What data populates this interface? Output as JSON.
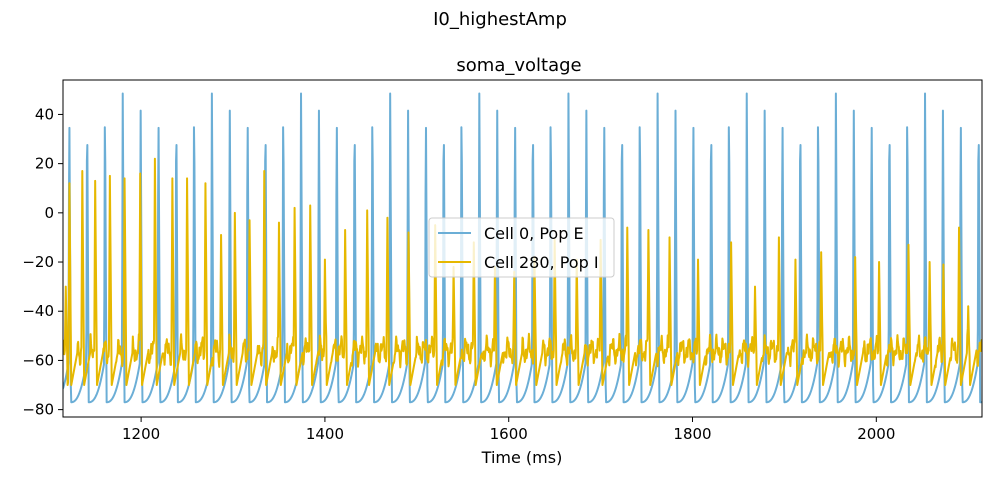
{
  "figure": {
    "suptitle": "I0_highestAmp"
  },
  "chart_data": {
    "type": "line",
    "title": "soma_voltage",
    "xlabel": "Time (ms)",
    "ylabel": "",
    "xlim": [
      1115,
      2115
    ],
    "ylim": [
      -83,
      54
    ],
    "xticks": [
      1200,
      1400,
      1600,
      1800,
      2000
    ],
    "yticks": [
      -80,
      -60,
      -40,
      -20,
      0,
      20,
      40
    ],
    "grid": false,
    "legend_position": "center",
    "series": [
      {
        "name": "Cell 0, Pop E",
        "color": "#6baed6",
        "pattern": "regular-spiking",
        "period_ms": 19.4,
        "first_spike_ms": 1121,
        "peak_mV": 48.5,
        "trough_mV": -77,
        "pre_spike_mV": -61
      },
      {
        "name": "Cell 280, Pop I",
        "color": "#e6b800",
        "pattern": "irregular-spiking",
        "baseline_mV": -56,
        "spikes": [
          {
            "t": 1118,
            "v": -30
          },
          {
            "t": 1122,
            "v": 12
          },
          {
            "t": 1136,
            "v": 17
          },
          {
            "t": 1150,
            "v": 13
          },
          {
            "t": 1166,
            "v": 15
          },
          {
            "t": 1182,
            "v": 14
          },
          {
            "t": 1199,
            "v": 16
          },
          {
            "t": 1215,
            "v": 22
          },
          {
            "t": 1234,
            "v": 14
          },
          {
            "t": 1250,
            "v": 14
          },
          {
            "t": 1270,
            "v": 12
          },
          {
            "t": 1287,
            "v": -9
          },
          {
            "t": 1302,
            "v": 0
          },
          {
            "t": 1318,
            "v": -3
          },
          {
            "t": 1334,
            "v": 17
          },
          {
            "t": 1350,
            "v": -4
          },
          {
            "t": 1367,
            "v": 2
          },
          {
            "t": 1384,
            "v": 3
          },
          {
            "t": 1400,
            "v": -19
          },
          {
            "t": 1422,
            "v": -7
          },
          {
            "t": 1446,
            "v": 1
          },
          {
            "t": 1468,
            "v": -2
          },
          {
            "t": 1491,
            "v": -8
          },
          {
            "t": 1520,
            "v": -5
          },
          {
            "t": 1540,
            "v": -22
          },
          {
            "t": 1562,
            "v": -12
          },
          {
            "t": 1585,
            "v": -22
          },
          {
            "t": 1606,
            "v": -24
          },
          {
            "t": 1628,
            "v": -18
          },
          {
            "t": 1650,
            "v": -11
          },
          {
            "t": 1674,
            "v": -19
          },
          {
            "t": 1700,
            "v": -11
          },
          {
            "t": 1729,
            "v": -6
          },
          {
            "t": 1752,
            "v": -7
          },
          {
            "t": 1775,
            "v": -10
          },
          {
            "t": 1806,
            "v": -19
          },
          {
            "t": 1842,
            "v": -12
          },
          {
            "t": 1868,
            "v": -30
          },
          {
            "t": 1894,
            "v": -10
          },
          {
            "t": 1912,
            "v": -19
          },
          {
            "t": 1940,
            "v": -16
          },
          {
            "t": 1977,
            "v": -18
          },
          {
            "t": 2003,
            "v": -20
          },
          {
            "t": 2035,
            "v": -13
          },
          {
            "t": 2058,
            "v": -20
          },
          {
            "t": 2073,
            "v": -21
          },
          {
            "t": 2090,
            "v": -6
          },
          {
            "t": 2100,
            "v": -38
          }
        ]
      }
    ]
  }
}
